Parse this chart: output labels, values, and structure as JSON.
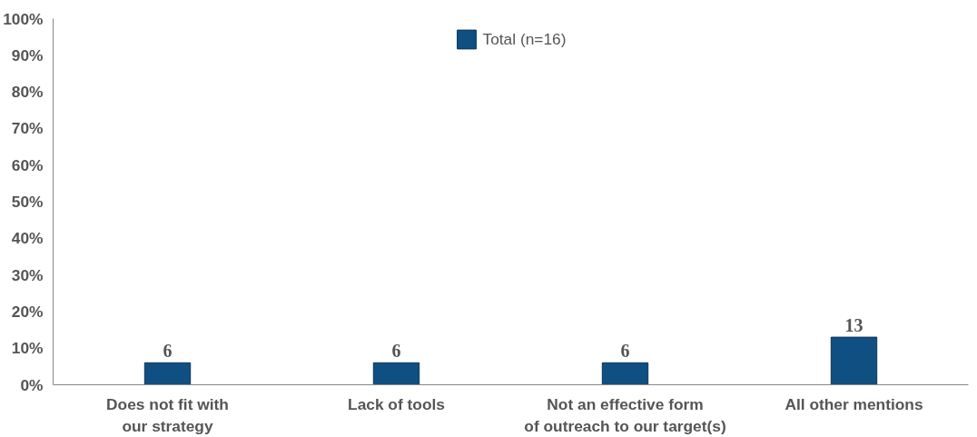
{
  "chart_data": {
    "type": "bar",
    "categories": [
      "Does not fit with\nour strategy",
      "Lack of tools",
      "Not an effective form\nof outreach to our target(s)",
      "All other mentions"
    ],
    "series": [
      {
        "name": "Total (n=16)",
        "color": "#0f4f82",
        "values": [
          6,
          6,
          6,
          13
        ]
      }
    ],
    "data_labels": true,
    "ylim": [
      0,
      100
    ],
    "yticks": [
      {
        "value": 0,
        "label": "0%"
      },
      {
        "value": 10,
        "label": "10%"
      },
      {
        "value": 20,
        "label": "20%"
      },
      {
        "value": 30,
        "label": "30%"
      },
      {
        "value": 40,
        "label": "40%"
      },
      {
        "value": 50,
        "label": "50%"
      },
      {
        "value": 60,
        "label": "60%"
      },
      {
        "value": 70,
        "label": "70%"
      },
      {
        "value": 80,
        "label": "80%"
      },
      {
        "value": 90,
        "label": "90%"
      },
      {
        "value": 100,
        "label": "100%"
      }
    ],
    "grid": false,
    "legend": "top"
  }
}
